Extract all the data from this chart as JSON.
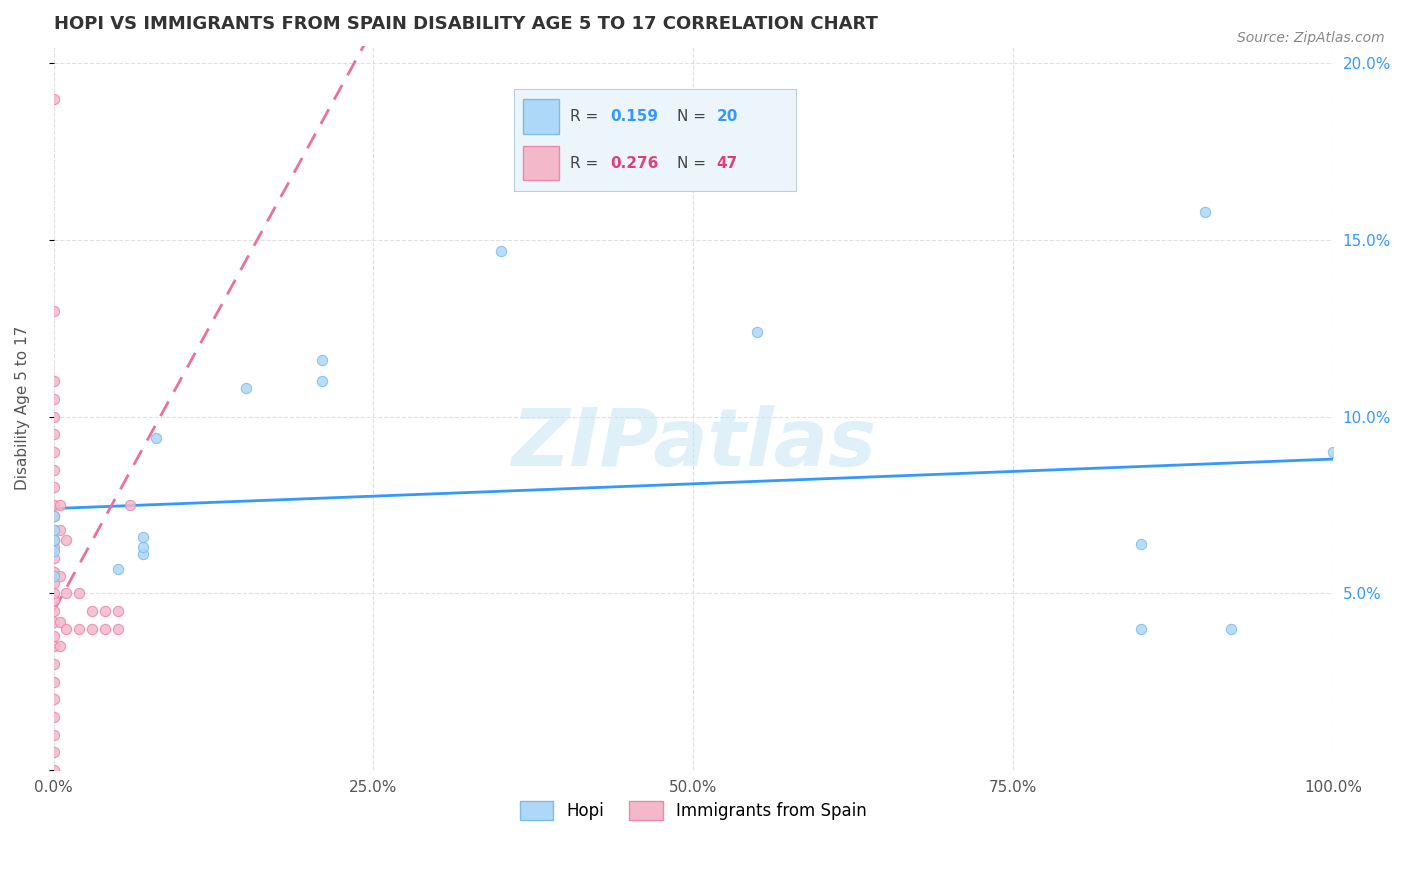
{
  "title": "HOPI VS IMMIGRANTS FROM SPAIN DISABILITY AGE 5 TO 17 CORRELATION CHART",
  "source": "Source: ZipAtlas.com",
  "ylabel": "Disability Age 5 to 17",
  "watermark": "ZIPatlas",
  "hopi_R": 0.159,
  "hopi_N": 20,
  "spain_R": 0.276,
  "spain_N": 47,
  "hopi_color": "#add8f7",
  "hopi_edge_color": "#7bbde8",
  "spain_color": "#f4b8cb",
  "spain_edge_color": "#e88aa8",
  "hopi_line_color": "#3399ff",
  "spain_line_color": "#e8729a",
  "xlim": [
    0.0,
    1.0
  ],
  "ylim": [
    0.0,
    0.205
  ],
  "xticks": [
    0.0,
    0.25,
    0.5,
    0.75,
    1.0
  ],
  "xtick_labels": [
    "0.0%",
    "25.0%",
    "50.0%",
    "75.0%",
    "100.0%"
  ],
  "yticks": [
    0.0,
    0.05,
    0.1,
    0.15,
    0.2
  ],
  "ytick_labels": [
    "",
    "5.0%",
    "10.0%",
    "15.0%",
    "20.0%"
  ],
  "hopi_x": [
    0.0,
    0.0,
    0.0,
    0.0,
    0.0,
    0.05,
    0.07,
    0.07,
    0.07,
    0.08,
    0.15,
    0.21,
    0.21,
    0.35,
    0.55,
    0.85,
    0.85,
    0.9,
    0.92,
    1.0
  ],
  "hopi_y": [
    0.055,
    0.062,
    0.065,
    0.068,
    0.072,
    0.057,
    0.061,
    0.063,
    0.066,
    0.094,
    0.108,
    0.11,
    0.116,
    0.147,
    0.124,
    0.04,
    0.064,
    0.158,
    0.04,
    0.09
  ],
  "spain_x": [
    0.0,
    0.0,
    0.0,
    0.0,
    0.0,
    0.0,
    0.0,
    0.0,
    0.0,
    0.0,
    0.0,
    0.0,
    0.0,
    0.0,
    0.0,
    0.0,
    0.0,
    0.0,
    0.0,
    0.0,
    0.0,
    0.0,
    0.0,
    0.0,
    0.0,
    0.0,
    0.0,
    0.0,
    0.0,
    0.0,
    0.005,
    0.005,
    0.005,
    0.005,
    0.005,
    0.01,
    0.01,
    0.01,
    0.02,
    0.02,
    0.03,
    0.03,
    0.04,
    0.04,
    0.05,
    0.05,
    0.06
  ],
  "spain_y": [
    0.0,
    0.005,
    0.01,
    0.015,
    0.02,
    0.025,
    0.03,
    0.035,
    0.038,
    0.042,
    0.045,
    0.048,
    0.05,
    0.053,
    0.056,
    0.06,
    0.063,
    0.065,
    0.068,
    0.072,
    0.075,
    0.08,
    0.085,
    0.09,
    0.095,
    0.1,
    0.105,
    0.11,
    0.13,
    0.19,
    0.035,
    0.042,
    0.055,
    0.068,
    0.075,
    0.04,
    0.05,
    0.065,
    0.04,
    0.05,
    0.04,
    0.045,
    0.04,
    0.045,
    0.04,
    0.045,
    0.075
  ],
  "hopi_trend_x": [
    0.0,
    1.0
  ],
  "hopi_trend_y_intercept": 0.074,
  "hopi_trend_slope": 0.014,
  "spain_trend_start_x": 0.0,
  "spain_trend_start_y": 0.045,
  "spain_trend_end_x": 0.25,
  "spain_trend_end_y": 0.21
}
